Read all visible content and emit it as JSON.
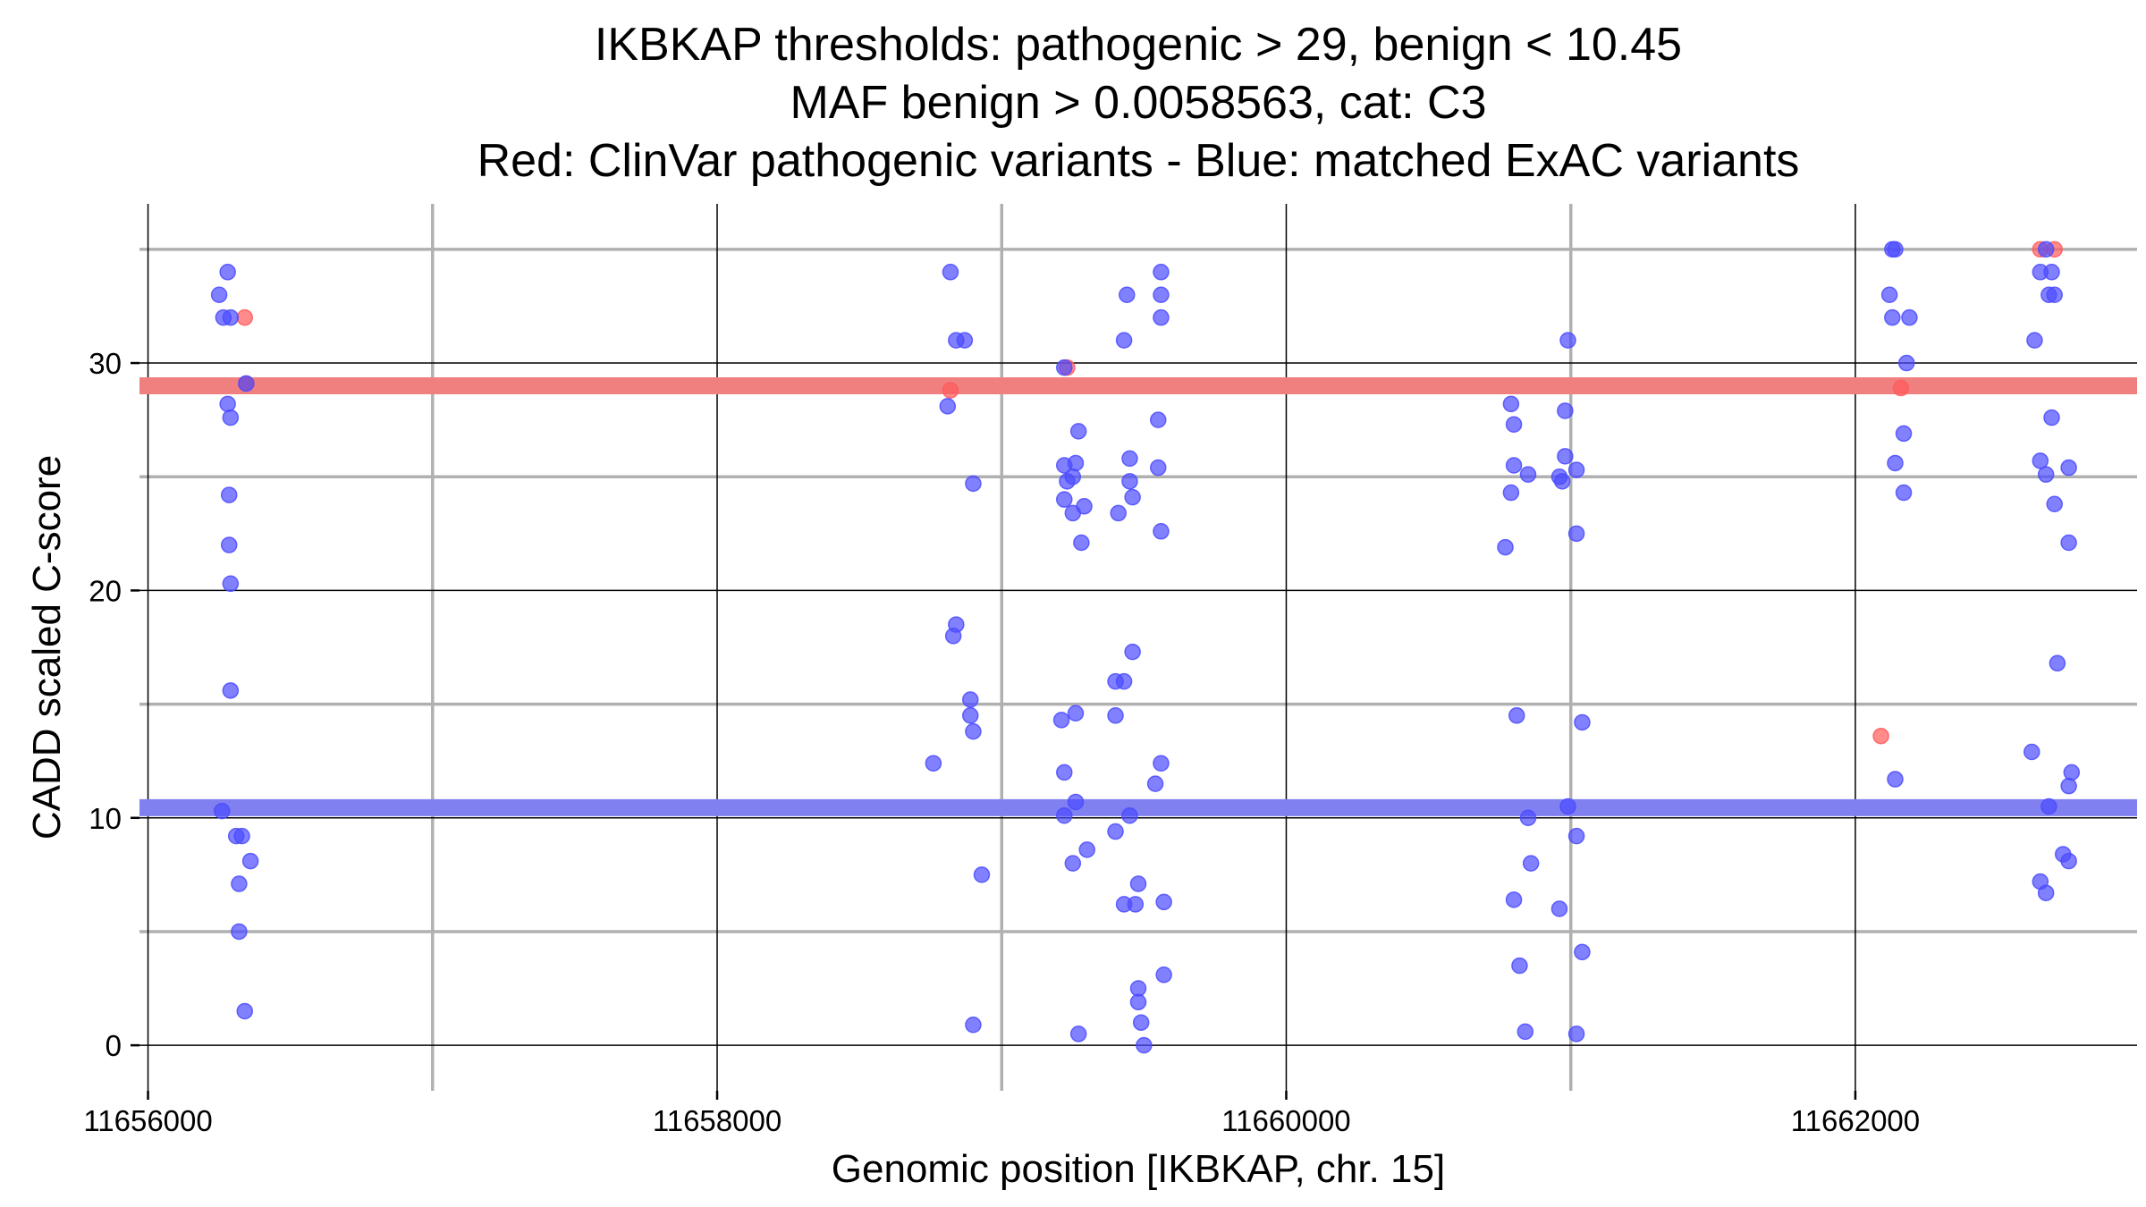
{
  "chart_data": {
    "type": "scatter",
    "title_lines": [
      "IKBKAP thresholds: pathogenic > 29, benign < 10.45",
      "MAF benign > 0.0058563, cat: C3",
      "Red: ClinVar pathogenic variants - Blue: matched ExAC variants"
    ],
    "xlabel": "Genomic position [IKBKAP, chr. 15]",
    "ylabel": "CADD scaled C-score",
    "xlim": [
      11655970,
      11662990
    ],
    "ylim": [
      -2,
      37
    ],
    "x_ticks": [
      11656000,
      11658000,
      11660000,
      11662000
    ],
    "x_tick_labels": [
      "11656000",
      "11658000",
      "11660000",
      "11662000"
    ],
    "x_minor_gridlines": [
      11657000,
      11659000,
      11661000
    ],
    "y_ticks": [
      0,
      10,
      20,
      30
    ],
    "y_tick_labels": [
      "0",
      "10",
      "20",
      "30"
    ],
    "y_minor_gridlines": [
      5,
      15,
      25,
      35
    ],
    "grid": true,
    "thresholds": [
      {
        "name": "pathogenic",
        "value": 29,
        "color": "#f08080"
      },
      {
        "name": "benign",
        "value": 10.45,
        "color": "#8080f0"
      }
    ],
    "series": [
      {
        "color": "#ff5a5a",
        "points": [
          [
            11656340,
            32
          ],
          [
            11656345,
            29.1
          ],
          [
            11658820,
            28.8
          ],
          [
            11659230,
            29.8
          ],
          [
            11662090,
            13.6
          ],
          [
            11662160,
            28.9
          ],
          [
            11662650,
            35
          ],
          [
            11662700,
            35
          ]
        ]
      },
      {
        "color": "#4b4bff",
        "points": [
          [
            11656280,
            34
          ],
          [
            11656250,
            33
          ],
          [
            11656265,
            32
          ],
          [
            11656290,
            32
          ],
          [
            11656345,
            29.1
          ],
          [
            11656280,
            28.2
          ],
          [
            11656290,
            27.6
          ],
          [
            11656285,
            24.2
          ],
          [
            11656285,
            22
          ],
          [
            11656290,
            20.3
          ],
          [
            11656290,
            15.6
          ],
          [
            11656260,
            10.3
          ],
          [
            11656310,
            9.2
          ],
          [
            11656330,
            9.2
          ],
          [
            11656360,
            8.1
          ],
          [
            11656320,
            7.1
          ],
          [
            11656320,
            5
          ],
          [
            11656340,
            1.5
          ],
          [
            11658820,
            34
          ],
          [
            11658840,
            31
          ],
          [
            11658870,
            31
          ],
          [
            11658810,
            28.1
          ],
          [
            11658900,
            24.7
          ],
          [
            11658840,
            18.5
          ],
          [
            11658830,
            18
          ],
          [
            11658890,
            15.2
          ],
          [
            11658890,
            14.5
          ],
          [
            11658900,
            13.8
          ],
          [
            11658760,
            12.4
          ],
          [
            11658930,
            7.5
          ],
          [
            11658900,
            0.9
          ],
          [
            11659220,
            29.8
          ],
          [
            11659270,
            27
          ],
          [
            11659220,
            25.5
          ],
          [
            11659260,
            25.6
          ],
          [
            11659250,
            25
          ],
          [
            11659230,
            24.8
          ],
          [
            11659220,
            24
          ],
          [
            11659290,
            23.7
          ],
          [
            11659250,
            23.4
          ],
          [
            11659280,
            22.1
          ],
          [
            11659210,
            14.3
          ],
          [
            11659260,
            14.6
          ],
          [
            11659220,
            12
          ],
          [
            11659260,
            10.7
          ],
          [
            11659220,
            10.1
          ],
          [
            11659300,
            8.6
          ],
          [
            11659250,
            8
          ],
          [
            11659270,
            0.5
          ],
          [
            11659440,
            33
          ],
          [
            11659430,
            31
          ],
          [
            11659450,
            25.8
          ],
          [
            11659450,
            24.8
          ],
          [
            11659460,
            24.1
          ],
          [
            11659410,
            23.4
          ],
          [
            11659400,
            16
          ],
          [
            11659430,
            16
          ],
          [
            11659460,
            17.3
          ],
          [
            11659400,
            14.5
          ],
          [
            11659450,
            10.1
          ],
          [
            11659400,
            9.4
          ],
          [
            11659480,
            7.1
          ],
          [
            11659430,
            6.2
          ],
          [
            11659470,
            6.2
          ],
          [
            11659480,
            2.5
          ],
          [
            11659480,
            1.9
          ],
          [
            11659490,
            1
          ],
          [
            11659500,
            0
          ],
          [
            11659560,
            34
          ],
          [
            11659560,
            33
          ],
          [
            11659560,
            32
          ],
          [
            11659550,
            27.5
          ],
          [
            11659550,
            25.4
          ],
          [
            11659560,
            22.6
          ],
          [
            11659560,
            12.4
          ],
          [
            11659540,
            11.5
          ],
          [
            11659570,
            6.3
          ],
          [
            11659570,
            3.1
          ],
          [
            11660790,
            28.2
          ],
          [
            11660800,
            27.3
          ],
          [
            11660800,
            25.5
          ],
          [
            11660790,
            24.3
          ],
          [
            11660770,
            21.9
          ],
          [
            11660850,
            25.1
          ],
          [
            11660810,
            14.5
          ],
          [
            11660850,
            10
          ],
          [
            11660860,
            8
          ],
          [
            11660800,
            6.4
          ],
          [
            11660820,
            3.5
          ],
          [
            11660840,
            0.6
          ],
          [
            11660990,
            31
          ],
          [
            11660980,
            27.9
          ],
          [
            11660980,
            25.9
          ],
          [
            11661020,
            25.3
          ],
          [
            11660960,
            25
          ],
          [
            11660970,
            24.8
          ],
          [
            11661020,
            22.5
          ],
          [
            11661040,
            14.2
          ],
          [
            11660990,
            10.5
          ],
          [
            11661020,
            9.2
          ],
          [
            11660960,
            6
          ],
          [
            11661040,
            4.1
          ],
          [
            11661020,
            0.5
          ],
          [
            11662130,
            35
          ],
          [
            11662140,
            35
          ],
          [
            11662120,
            33
          ],
          [
            11662130,
            32
          ],
          [
            11662190,
            32
          ],
          [
            11662180,
            30
          ],
          [
            11662170,
            26.9
          ],
          [
            11662140,
            25.6
          ],
          [
            11662170,
            24.3
          ],
          [
            11662140,
            11.7
          ],
          [
            11662670,
            35
          ],
          [
            11662690,
            34
          ],
          [
            11662650,
            34
          ],
          [
            11662680,
            33
          ],
          [
            11662700,
            33
          ],
          [
            11662630,
            31
          ],
          [
            11662690,
            27.6
          ],
          [
            11662650,
            25.7
          ],
          [
            11662670,
            25.1
          ],
          [
            11662750,
            25.4
          ],
          [
            11662700,
            23.8
          ],
          [
            11662750,
            22.1
          ],
          [
            11662710,
            16.8
          ],
          [
            11662620,
            12.9
          ],
          [
            11662760,
            12
          ],
          [
            11662750,
            11.4
          ],
          [
            11662680,
            10.5
          ],
          [
            11662730,
            8.4
          ],
          [
            11662750,
            8.1
          ],
          [
            11662650,
            7.2
          ],
          [
            11662670,
            6.7
          ]
        ]
      }
    ]
  }
}
